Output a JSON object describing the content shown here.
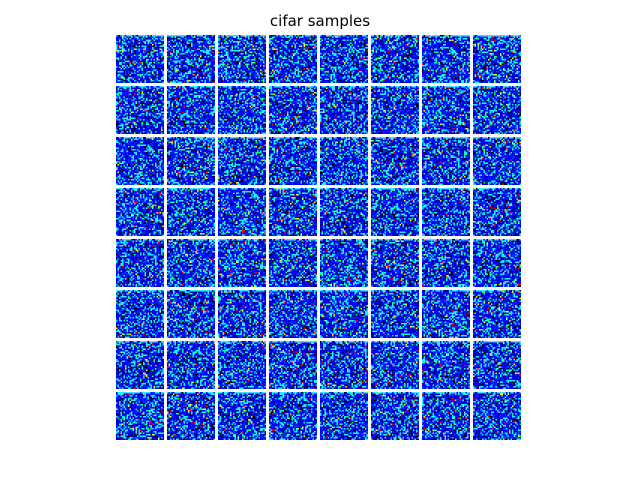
{
  "title": "cifar samples",
  "mosaic": {
    "rows": 8,
    "cols": 8,
    "pixels_per_tile": 32,
    "colormap": "jet",
    "palette": {
      "dark_blue": "#0000a0",
      "blue": "#0000ff",
      "bright_blue": "#0a32ff",
      "cyan": "#00ffff",
      "light_cyan": "#40e0ff",
      "green": "#00ff60",
      "yellow": "#ffff00",
      "red": "#ff0000",
      "black": "#000000"
    },
    "separator_color": "#ffffff"
  }
}
